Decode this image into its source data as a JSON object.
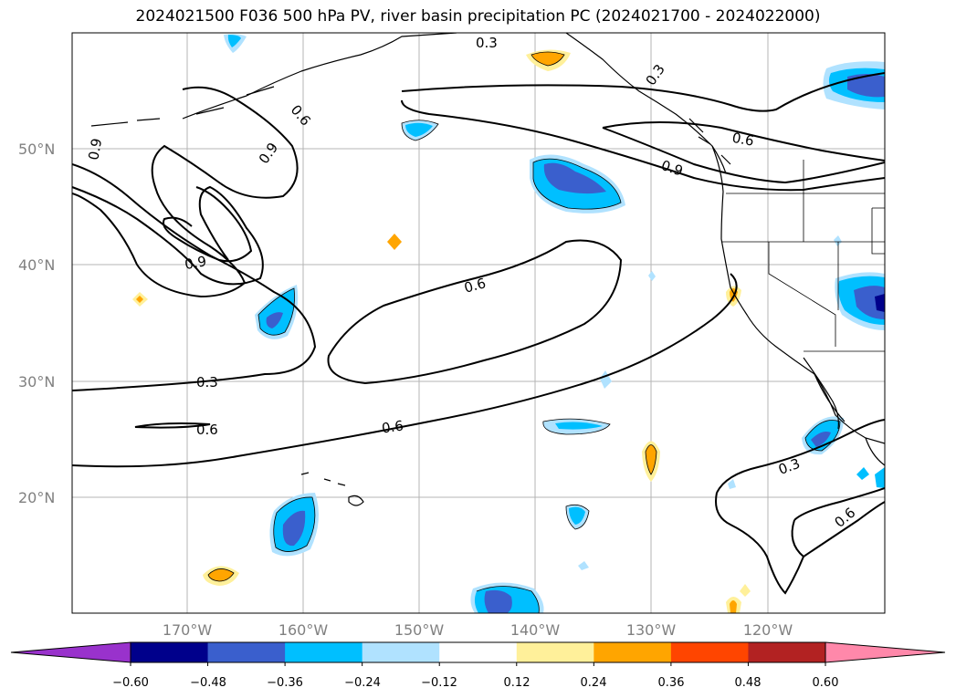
{
  "title": "2024021500 F036 500 hPa PV, river basin precipitation PC (2024021700 - 2024022000)",
  "map": {
    "lat_labels": [
      "50°N",
      "40°N",
      "30°N",
      "20°N"
    ],
    "lon_labels": [
      "170°W",
      "160°W",
      "150°W",
      "140°W",
      "130°W",
      "120°W"
    ],
    "contour_labels": [
      "0.3",
      "0.3",
      "0.6",
      "0.6",
      "0.9",
      "0.9",
      "0.9",
      "0.9",
      "0.6",
      "0.3",
      "0.6",
      "0.6",
      "0.3",
      "0.3",
      "0.6"
    ],
    "grid": true
  },
  "colorbar": {
    "ticks": [
      "−0.60",
      "−0.48",
      "−0.36",
      "−0.24",
      "−0.12",
      "0.12",
      "0.24",
      "0.36",
      "0.48",
      "0.60"
    ],
    "colors": [
      "#9932cc",
      "#00008b",
      "#3a5fcd",
      "#00bfff",
      "#b0e2ff",
      "#ffffff",
      "#fff09a",
      "#ffa500",
      "#ff4500",
      "#b22222",
      "#ff88aa"
    ]
  }
}
